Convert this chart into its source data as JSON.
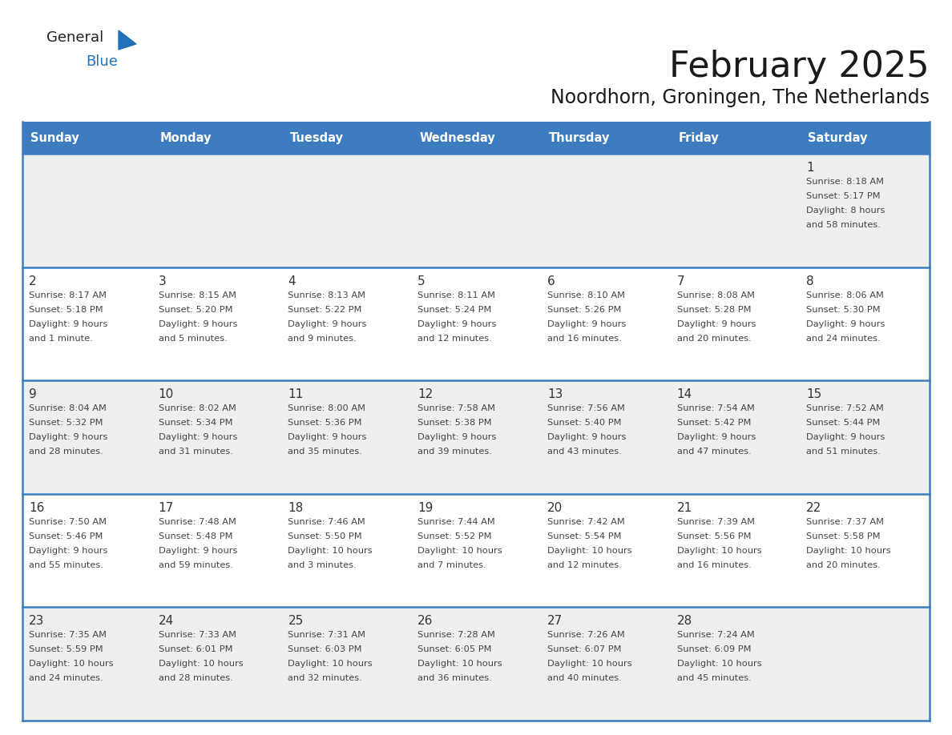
{
  "title": "February 2025",
  "subtitle": "Noordhorn, Groningen, The Netherlands",
  "header_bg": "#3D7DBF",
  "header_text_color": "#FFFFFF",
  "cell_bg_odd": "#EFEFEF",
  "cell_bg_even": "#FFFFFF",
  "row_border_color": "#3D7DBF",
  "day_headers": [
    "Sunday",
    "Monday",
    "Tuesday",
    "Wednesday",
    "Thursday",
    "Friday",
    "Saturday"
  ],
  "title_color": "#1a1a1a",
  "subtitle_color": "#1a1a1a",
  "text_color": "#444444",
  "day_num_color": "#333333",
  "logo_general_color": "#222222",
  "logo_blue_color": "#2272B9",
  "logo_triangle_color": "#2272B9",
  "weeks": [
    [
      {
        "day": null,
        "info": null
      },
      {
        "day": null,
        "info": null
      },
      {
        "day": null,
        "info": null
      },
      {
        "day": null,
        "info": null
      },
      {
        "day": null,
        "info": null
      },
      {
        "day": null,
        "info": null
      },
      {
        "day": 1,
        "info": "Sunrise: 8:18 AM\nSunset: 5:17 PM\nDaylight: 8 hours\nand 58 minutes."
      }
    ],
    [
      {
        "day": 2,
        "info": "Sunrise: 8:17 AM\nSunset: 5:18 PM\nDaylight: 9 hours\nand 1 minute."
      },
      {
        "day": 3,
        "info": "Sunrise: 8:15 AM\nSunset: 5:20 PM\nDaylight: 9 hours\nand 5 minutes."
      },
      {
        "day": 4,
        "info": "Sunrise: 8:13 AM\nSunset: 5:22 PM\nDaylight: 9 hours\nand 9 minutes."
      },
      {
        "day": 5,
        "info": "Sunrise: 8:11 AM\nSunset: 5:24 PM\nDaylight: 9 hours\nand 12 minutes."
      },
      {
        "day": 6,
        "info": "Sunrise: 8:10 AM\nSunset: 5:26 PM\nDaylight: 9 hours\nand 16 minutes."
      },
      {
        "day": 7,
        "info": "Sunrise: 8:08 AM\nSunset: 5:28 PM\nDaylight: 9 hours\nand 20 minutes."
      },
      {
        "day": 8,
        "info": "Sunrise: 8:06 AM\nSunset: 5:30 PM\nDaylight: 9 hours\nand 24 minutes."
      }
    ],
    [
      {
        "day": 9,
        "info": "Sunrise: 8:04 AM\nSunset: 5:32 PM\nDaylight: 9 hours\nand 28 minutes."
      },
      {
        "day": 10,
        "info": "Sunrise: 8:02 AM\nSunset: 5:34 PM\nDaylight: 9 hours\nand 31 minutes."
      },
      {
        "day": 11,
        "info": "Sunrise: 8:00 AM\nSunset: 5:36 PM\nDaylight: 9 hours\nand 35 minutes."
      },
      {
        "day": 12,
        "info": "Sunrise: 7:58 AM\nSunset: 5:38 PM\nDaylight: 9 hours\nand 39 minutes."
      },
      {
        "day": 13,
        "info": "Sunrise: 7:56 AM\nSunset: 5:40 PM\nDaylight: 9 hours\nand 43 minutes."
      },
      {
        "day": 14,
        "info": "Sunrise: 7:54 AM\nSunset: 5:42 PM\nDaylight: 9 hours\nand 47 minutes."
      },
      {
        "day": 15,
        "info": "Sunrise: 7:52 AM\nSunset: 5:44 PM\nDaylight: 9 hours\nand 51 minutes."
      }
    ],
    [
      {
        "day": 16,
        "info": "Sunrise: 7:50 AM\nSunset: 5:46 PM\nDaylight: 9 hours\nand 55 minutes."
      },
      {
        "day": 17,
        "info": "Sunrise: 7:48 AM\nSunset: 5:48 PM\nDaylight: 9 hours\nand 59 minutes."
      },
      {
        "day": 18,
        "info": "Sunrise: 7:46 AM\nSunset: 5:50 PM\nDaylight: 10 hours\nand 3 minutes."
      },
      {
        "day": 19,
        "info": "Sunrise: 7:44 AM\nSunset: 5:52 PM\nDaylight: 10 hours\nand 7 minutes."
      },
      {
        "day": 20,
        "info": "Sunrise: 7:42 AM\nSunset: 5:54 PM\nDaylight: 10 hours\nand 12 minutes."
      },
      {
        "day": 21,
        "info": "Sunrise: 7:39 AM\nSunset: 5:56 PM\nDaylight: 10 hours\nand 16 minutes."
      },
      {
        "day": 22,
        "info": "Sunrise: 7:37 AM\nSunset: 5:58 PM\nDaylight: 10 hours\nand 20 minutes."
      }
    ],
    [
      {
        "day": 23,
        "info": "Sunrise: 7:35 AM\nSunset: 5:59 PM\nDaylight: 10 hours\nand 24 minutes."
      },
      {
        "day": 24,
        "info": "Sunrise: 7:33 AM\nSunset: 6:01 PM\nDaylight: 10 hours\nand 28 minutes."
      },
      {
        "day": 25,
        "info": "Sunrise: 7:31 AM\nSunset: 6:03 PM\nDaylight: 10 hours\nand 32 minutes."
      },
      {
        "day": 26,
        "info": "Sunrise: 7:28 AM\nSunset: 6:05 PM\nDaylight: 10 hours\nand 36 minutes."
      },
      {
        "day": 27,
        "info": "Sunrise: 7:26 AM\nSunset: 6:07 PM\nDaylight: 10 hours\nand 40 minutes."
      },
      {
        "day": 28,
        "info": "Sunrise: 7:24 AM\nSunset: 6:09 PM\nDaylight: 10 hours\nand 45 minutes."
      },
      {
        "day": null,
        "info": null
      }
    ]
  ]
}
